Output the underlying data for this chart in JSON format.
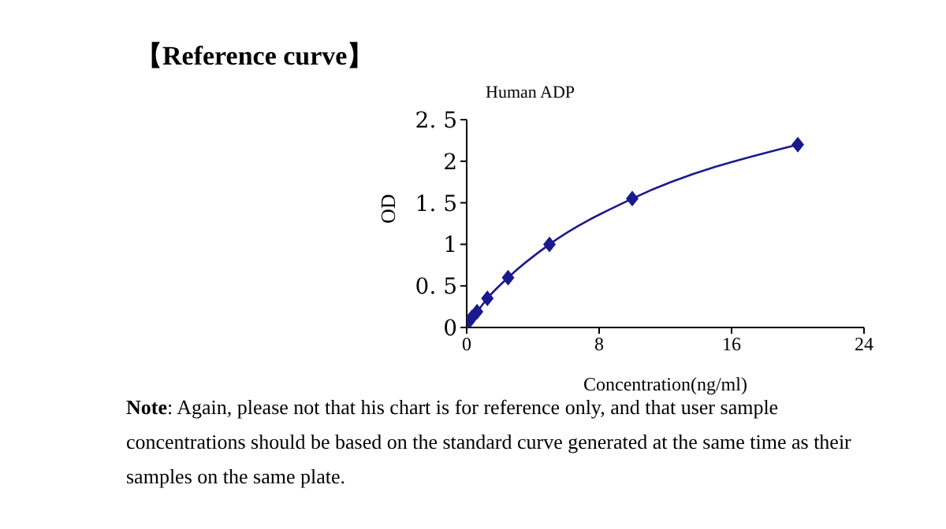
{
  "chart_data": {
    "type": "line",
    "title": "【Reference curve】",
    "subtitle": "Human ADP",
    "xlabel": "Concentration(ng/ml)",
    "ylabel": "OD",
    "annotations": [
      "Note: Again, please not that his chart is for reference only, and that user sample concentrations should be based on the standard curve generated at the same time as their samples on the same plate."
    ],
    "series": [
      {
        "color": "#1a1a8c",
        "x": [
          0,
          0.156,
          0.312,
          0.625,
          1.25,
          2.5,
          5,
          10,
          20
        ],
        "values": [
          0.05,
          0.08,
          0.12,
          0.19,
          0.35,
          0.6,
          1.0,
          1.55,
          2.2
        ]
      }
    ],
    "xlim": [
      0,
      24
    ],
    "xticks": [
      0,
      8,
      16,
      24
    ],
    "ylim": [
      0,
      2.5
    ],
    "yticks": [
      0,
      {
        "value": 0.5,
        "label": "0. 5"
      },
      1,
      {
        "value": 1.5,
        "label": "1. 5"
      },
      2,
      {
        "value": 2.5,
        "label": "2. 5"
      }
    ],
    "marker": "diamond",
    "line_style": "solid",
    "grid": false,
    "legend": false
  }
}
